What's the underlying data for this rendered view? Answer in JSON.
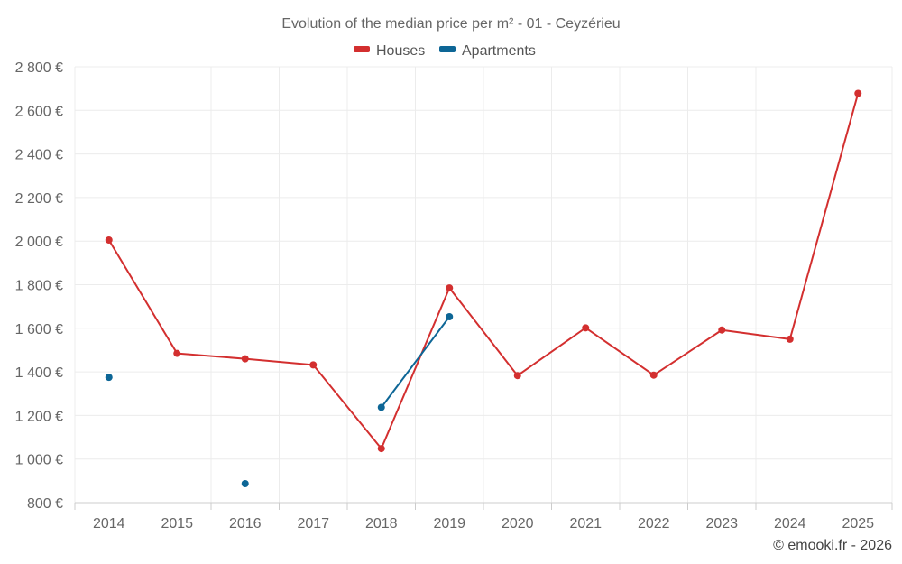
{
  "chart_data": {
    "type": "line",
    "title": "Evolution of the median price per m² - 01 - Ceyzérieu",
    "categories": [
      "2014",
      "2015",
      "2016",
      "2017",
      "2018",
      "2019",
      "2020",
      "2021",
      "2022",
      "2023",
      "2024",
      "2025"
    ],
    "series": [
      {
        "name": "Houses",
        "color": "#d32f2f",
        "values": [
          2005,
          1485,
          1460,
          1432,
          1048,
          1785,
          1383,
          1602,
          1385,
          1592,
          1550,
          2678
        ]
      },
      {
        "name": "Apartments",
        "color": "#0d6696",
        "values": [
          1375,
          null,
          887,
          null,
          1237,
          1653,
          null,
          null,
          null,
          null,
          null,
          null
        ]
      }
    ],
    "y_ticks": [
      {
        "value": 800,
        "label": "800 €"
      },
      {
        "value": 1000,
        "label": "1 000 €"
      },
      {
        "value": 1200,
        "label": "1 200 €"
      },
      {
        "value": 1400,
        "label": "1 400 €"
      },
      {
        "value": 1600,
        "label": "1 600 €"
      },
      {
        "value": 1800,
        "label": "1 800 €"
      },
      {
        "value": 2000,
        "label": "2 000 €"
      },
      {
        "value": 2200,
        "label": "2 200 €"
      },
      {
        "value": 2400,
        "label": "2 400 €"
      },
      {
        "value": 2600,
        "label": "2 600 €"
      },
      {
        "value": 2800,
        "label": "2 800 €"
      }
    ],
    "ylim": [
      800,
      2800
    ],
    "grid": true,
    "legend_position": "top-center",
    "credit": "© emooki.fr - 2026"
  }
}
